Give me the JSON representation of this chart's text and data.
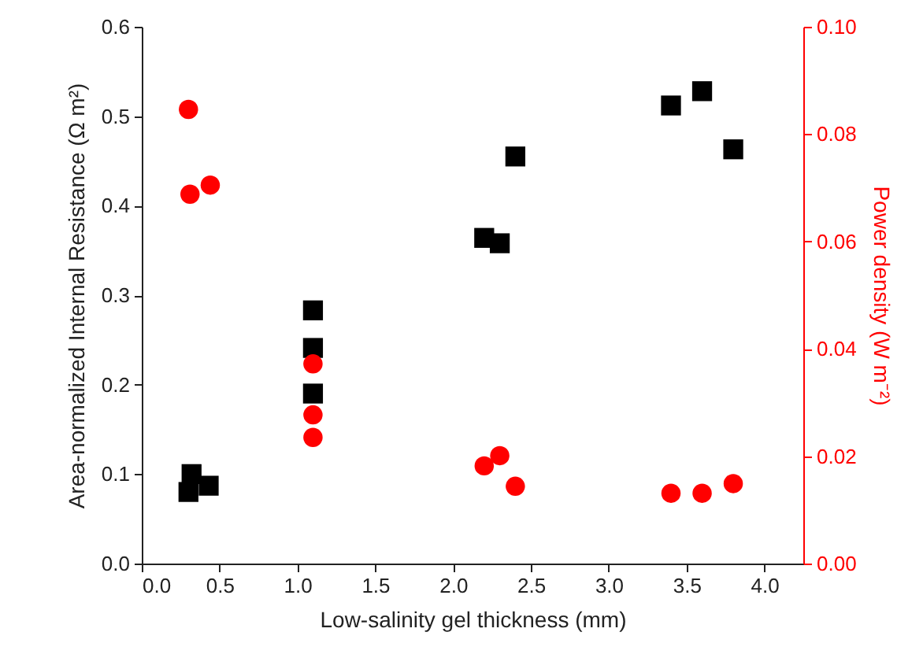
{
  "chart_data": {
    "type": "scatter",
    "xlabel": "Low-salinity gel thickness (mm)",
    "ylabel": "Area-normalized Internal Resistance (Ω m²)",
    "y2label": "Power density (W m⁻²)",
    "xlim": [
      0,
      4.25
    ],
    "xticks": [
      {
        "value": 0,
        "label": "0.0"
      },
      {
        "value": 0.5,
        "label": "0.5"
      },
      {
        "value": 1,
        "label": "1.0"
      },
      {
        "value": 1.5,
        "label": "1.5"
      },
      {
        "value": 2,
        "label": "2.0"
      },
      {
        "value": 2.5,
        "label": "2.5"
      },
      {
        "value": 3,
        "label": "3.0"
      },
      {
        "value": 3.5,
        "label": "3.5"
      },
      {
        "value": 4,
        "label": "4.0"
      }
    ],
    "ylim": [
      0,
      0.6
    ],
    "yticks": [
      {
        "value": 0,
        "label": "0.0"
      },
      {
        "value": 0.1,
        "label": "0.1"
      },
      {
        "value": 0.2,
        "label": "0.2"
      },
      {
        "value": 0.3,
        "label": "0.3"
      },
      {
        "value": 0.4,
        "label": "0.4"
      },
      {
        "value": 0.5,
        "label": "0.5"
      },
      {
        "value": 0.6,
        "label": "0.6"
      }
    ],
    "y2lim": [
      0,
      0.1
    ],
    "y2ticks": [
      {
        "value": 0,
        "label": "0.00"
      },
      {
        "value": 0.02,
        "label": "0.02"
      },
      {
        "value": 0.04,
        "label": "0.04"
      },
      {
        "value": 0.06,
        "label": "0.06"
      },
      {
        "value": 0.08,
        "label": "0.08"
      },
      {
        "value": 0.1,
        "label": "0.10"
      }
    ],
    "grid": false,
    "series": [
      {
        "color": "#000000",
        "marker": "square",
        "x": [
          0.3,
          0.32,
          0.43,
          1.1,
          1.1,
          1.1,
          2.2,
          2.3,
          2.4,
          3.4,
          3.6,
          3.8
        ],
        "values": [
          0.08,
          0.1,
          0.087,
          0.283,
          0.241,
          0.19,
          0.364,
          0.358,
          0.455,
          0.512,
          0.528,
          0.463
        ]
      },
      {
        "color": "#ff0000",
        "marker": "circle",
        "axis": "y2",
        "x": [
          0.3,
          0.31,
          0.44,
          1.1,
          1.1,
          1.1,
          2.2,
          2.3,
          2.4,
          3.4,
          3.6,
          3.8
        ],
        "values": [
          0.0846,
          0.0688,
          0.0705,
          0.0372,
          0.0277,
          0.0235,
          0.0182,
          0.0201,
          0.0144,
          0.0131,
          0.0131,
          0.0149
        ]
      }
    ]
  }
}
